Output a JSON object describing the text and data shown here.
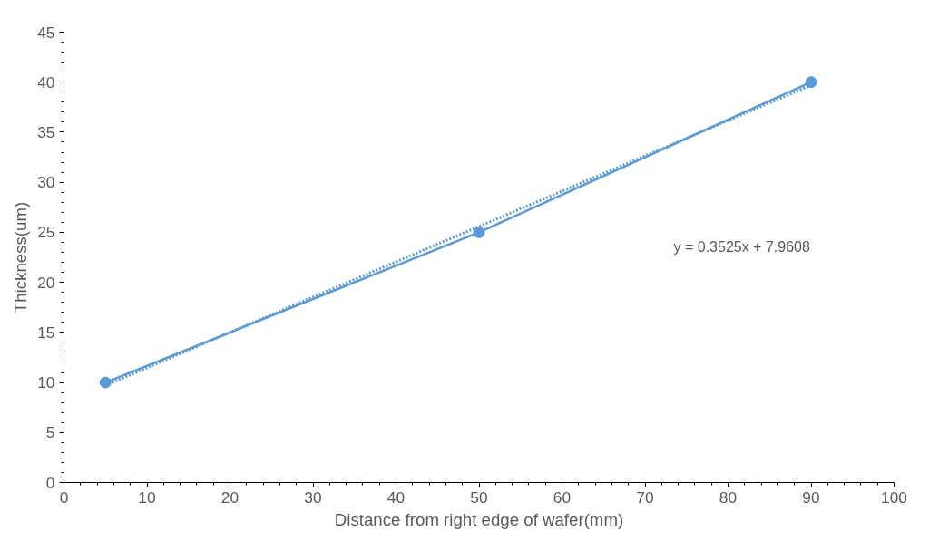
{
  "chart_data": {
    "type": "line",
    "xlabel": "Distance from right edge of wafer(mm)",
    "ylabel": "Thickness(um)",
    "xlim": [
      0,
      100
    ],
    "xticks": [
      0,
      10,
      20,
      30,
      40,
      50,
      60,
      70,
      80,
      90,
      100
    ],
    "ylim": [
      0,
      45
    ],
    "yticks": [
      0,
      5,
      10,
      15,
      20,
      25,
      30,
      35,
      40,
      45
    ],
    "grid": false,
    "series": [
      {
        "color": "#5b9bd5",
        "marker": "circle",
        "line_style": "solid",
        "x": [
          5,
          50,
          90
        ],
        "values": [
          10,
          25,
          40
        ]
      },
      {
        "color": "#5b9bd5",
        "marker": "none",
        "line_style": "dotted",
        "x": [
          5,
          90
        ],
        "values": [
          9.7,
          39.7
        ]
      }
    ],
    "annotations": [
      "y = 0.3525x + 7.9608"
    ]
  }
}
